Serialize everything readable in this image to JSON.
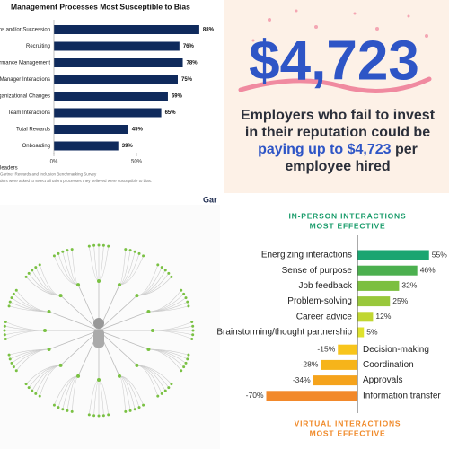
{
  "chart_data": [
    {
      "type": "hbar",
      "title": "Management Processes Most Susceptible to Bias",
      "categories": [
        "ons and/or Succession",
        "Recruiting",
        "rformance Management",
        "Manager Interactions",
        "rganizational Changes",
        "Team Interactions",
        "Total Rewards",
        "Onboarding"
      ],
      "values": [
        88,
        76,
        78,
        75,
        69,
        65,
        45,
        39
      ],
      "value_labels": [
        "88%",
        "76%",
        "78%",
        "75%",
        "69%",
        "65%",
        "45%",
        "39%"
      ],
      "color": "#0f2a5c",
      "xlim": [
        0,
        100
      ],
      "xticks": [
        {
          "value": 0,
          "label": "0%"
        },
        {
          "value": 50,
          "label": "50%"
        }
      ],
      "notes": [
        "leaders",
        "Gartner Rewards and Inclusion Benchmarking Survey",
        "ders were asked to select all talent processes they believed were susceptible to bias."
      ]
    },
    {
      "type": "diverging",
      "title": [
        "IN-PERSON INTERACTIONS",
        "MOST EFFECTIVE"
      ],
      "footer_title": [
        "VIRTUAL INTERACTIONS",
        "MOST EFFECTIVE"
      ],
      "categories": [
        "Energizing interactions",
        "Sense of purpose",
        "Job feedback",
        "Problem-solving",
        "Career advice",
        "Brainstorming/thought partnership",
        "Decision-making",
        "Coordination",
        "Approvals",
        "Information transfer"
      ],
      "values": [
        55,
        46,
        32,
        25,
        12,
        5,
        -15,
        -28,
        -34,
        -70
      ],
      "value_labels": [
        "55%",
        "46%",
        "32%",
        "25%",
        "12%",
        "5%",
        "-15%",
        "-28%",
        "-34%",
        "-70%"
      ],
      "colors": [
        "#1aa571",
        "#4cb04f",
        "#7cbf40",
        "#99c83c",
        "#c0d631",
        "#dfe22c",
        "#f8c51c",
        "#f6b41a",
        "#f5a31c",
        "#f2892b"
      ]
    }
  ],
  "stat_card": {
    "amount": "$4,723",
    "lines": [
      "Employers who fail to invest",
      "in their reputation could be"
    ],
    "highlight": "paying up to $4,723",
    "highlight_tail": " per",
    "last_line": "employee hired"
  },
  "mindmap": {
    "logo": "Gar"
  }
}
